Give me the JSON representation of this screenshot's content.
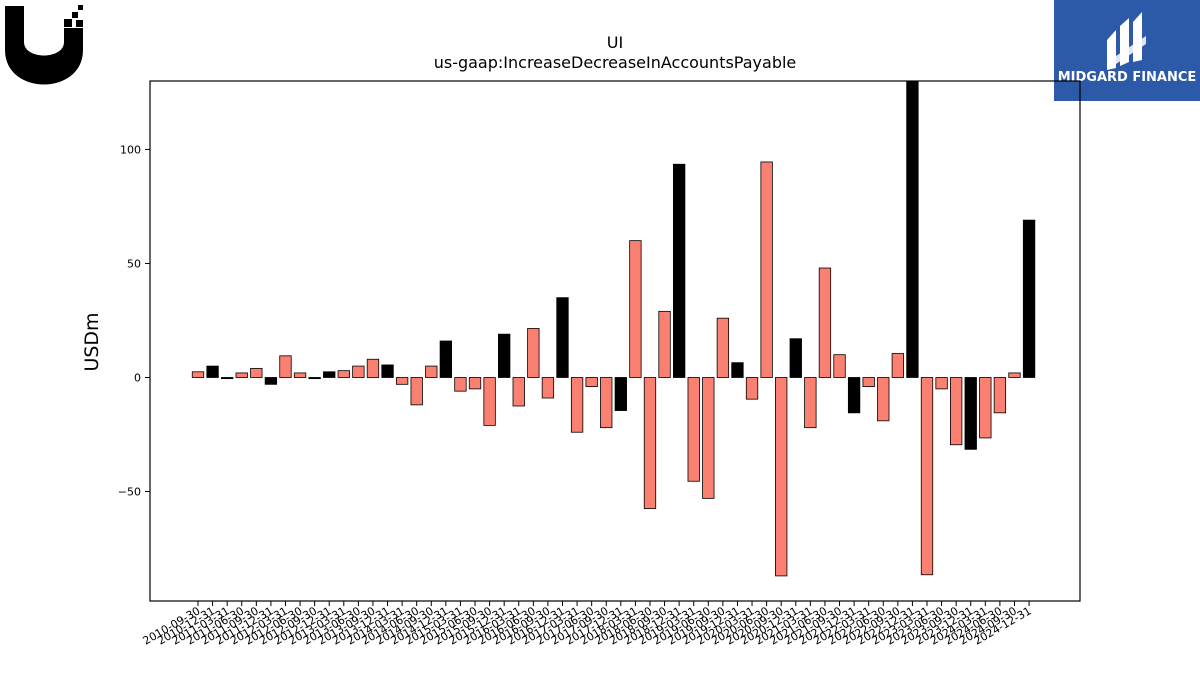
{
  "chart_data": {
    "type": "bar",
    "title": "UI",
    "subtitle": "us-gaap:IncreaseDecreaseInAccountsPayable",
    "xlabel": "",
    "ylabel": "USDm",
    "ylim": [
      -98,
      130
    ],
    "yticks": [
      -50,
      0,
      50,
      100
    ],
    "grid": false,
    "colors": {
      "positive_quarter": "#fa8072",
      "fiscal_year_end": "#000000",
      "edge": "#000000"
    },
    "categories": [
      "2010-09-30",
      "2010-12-31",
      "2011-03-31",
      "2011-06-30",
      "2011-09-30",
      "2011-12-31",
      "2012-03-31",
      "2012-06-30",
      "2012-09-30",
      "2012-12-31",
      "2013-03-31",
      "2013-06-30",
      "2013-09-30",
      "2013-12-31",
      "2014-03-31",
      "2014-06-30",
      "2014-09-30",
      "2014-12-31",
      "2015-03-31",
      "2015-06-30",
      "2015-09-30",
      "2015-12-31",
      "2016-03-31",
      "2016-06-30",
      "2016-09-30",
      "2016-12-31",
      "2017-03-31",
      "2017-06-30",
      "2017-09-30",
      "2017-12-31",
      "2018-03-31",
      "2018-06-30",
      "2018-09-30",
      "2018-12-31",
      "2019-03-31",
      "2019-06-30",
      "2019-09-30",
      "2019-12-31",
      "2020-03-31",
      "2020-06-30",
      "2020-09-30",
      "2020-12-31",
      "2021-03-31",
      "2021-06-30",
      "2021-09-30",
      "2021-12-31",
      "2022-03-31",
      "2022-06-30",
      "2022-09-30",
      "2022-12-31",
      "2023-03-31",
      "2023-06-30",
      "2023-09-30",
      "2023-12-31",
      "2024-03-31",
      "2024-06-30",
      "2024-09-30",
      "2024-12-31"
    ],
    "values": [
      2.5,
      5,
      -0.5,
      2,
      4,
      -3,
      9.5,
      2,
      -0.5,
      2.5,
      3,
      5,
      8,
      5.5,
      -3,
      -12,
      5,
      16,
      -6,
      -5,
      -21,
      19,
      -12.5,
      21.5,
      -9,
      35,
      -24,
      -4,
      -22,
      -14.5,
      60,
      -57.5,
      29,
      93.5,
      -45.5,
      -53,
      26,
      6.5,
      -9.5,
      94.5,
      -87,
      17,
      -22,
      48,
      10,
      -15.5,
      -4,
      -19,
      10.5,
      130,
      -86.5,
      -5,
      -29.5,
      -31.5,
      -26.5,
      -15.5,
      2,
      69
    ],
    "highlight": [
      false,
      true,
      true,
      false,
      false,
      true,
      false,
      false,
      true,
      true,
      false,
      false,
      false,
      true,
      false,
      false,
      false,
      true,
      false,
      false,
      false,
      true,
      false,
      false,
      false,
      true,
      false,
      false,
      false,
      true,
      false,
      false,
      false,
      true,
      false,
      false,
      false,
      true,
      false,
      false,
      false,
      true,
      false,
      false,
      false,
      true,
      false,
      false,
      false,
      true,
      false,
      false,
      false,
      true,
      false,
      false,
      false,
      true
    ]
  },
  "logos": {
    "left": {
      "name": "ubiquiti-u-logo"
    },
    "right": {
      "name": "midgard-finance-logo",
      "text": "MIDGARD FINANCE",
      "background": "#2d5aa8"
    }
  }
}
